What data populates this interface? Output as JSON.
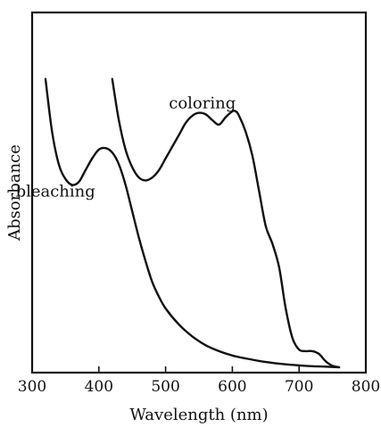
{
  "chart_data": {
    "type": "line",
    "title": "",
    "xlabel": "Wavelength (nm)",
    "ylabel": "Absorbance",
    "xlim": [
      300,
      800
    ],
    "ylim": [
      0,
      1
    ],
    "xticks": [
      300,
      400,
      500,
      600,
      700,
      800
    ],
    "x_tick_labels": [
      "300",
      "400",
      "500",
      "600",
      "700",
      "800"
    ],
    "grid": false,
    "legend": "none",
    "series": [
      {
        "name": "bleaching",
        "label_at": [
          335,
          0.58
        ],
        "points": [
          [
            320,
            0.98
          ],
          [
            330,
            0.8
          ],
          [
            340,
            0.69
          ],
          [
            350,
            0.64
          ],
          [
            360,
            0.62
          ],
          [
            370,
            0.63
          ],
          [
            380,
            0.67
          ],
          [
            390,
            0.71
          ],
          [
            400,
            0.74
          ],
          [
            410,
            0.745
          ],
          [
            420,
            0.73
          ],
          [
            430,
            0.69
          ],
          [
            440,
            0.62
          ],
          [
            450,
            0.53
          ],
          [
            460,
            0.44
          ],
          [
            470,
            0.36
          ],
          [
            480,
            0.29
          ],
          [
            490,
            0.24
          ],
          [
            500,
            0.2
          ],
          [
            520,
            0.145
          ],
          [
            540,
            0.105
          ],
          [
            560,
            0.075
          ],
          [
            580,
            0.055
          ],
          [
            600,
            0.04
          ],
          [
            620,
            0.03
          ],
          [
            650,
            0.018
          ],
          [
            680,
            0.01
          ],
          [
            710,
            0.005
          ],
          [
            740,
            0.002
          ],
          [
            760,
            0.0
          ]
        ]
      },
      {
        "name": "coloring",
        "label_at": [
          555,
          0.88
        ],
        "points": [
          [
            420,
            0.98
          ],
          [
            430,
            0.84
          ],
          [
            440,
            0.74
          ],
          [
            450,
            0.68
          ],
          [
            460,
            0.645
          ],
          [
            470,
            0.635
          ],
          [
            480,
            0.645
          ],
          [
            490,
            0.67
          ],
          [
            500,
            0.71
          ],
          [
            510,
            0.75
          ],
          [
            520,
            0.79
          ],
          [
            530,
            0.83
          ],
          [
            540,
            0.855
          ],
          [
            550,
            0.865
          ],
          [
            560,
            0.86
          ],
          [
            570,
            0.84
          ],
          [
            580,
            0.825
          ],
          [
            590,
            0.85
          ],
          [
            600,
            0.87
          ],
          [
            605,
            0.87
          ],
          [
            610,
            0.855
          ],
          [
            620,
            0.8
          ],
          [
            630,
            0.72
          ],
          [
            640,
            0.6
          ],
          [
            650,
            0.48
          ],
          [
            660,
            0.42
          ],
          [
            670,
            0.34
          ],
          [
            680,
            0.2
          ],
          [
            690,
            0.1
          ],
          [
            700,
            0.06
          ],
          [
            710,
            0.055
          ],
          [
            720,
            0.055
          ],
          [
            730,
            0.045
          ],
          [
            740,
            0.02
          ],
          [
            750,
            0.005
          ],
          [
            760,
            0.0
          ]
        ]
      }
    ]
  }
}
